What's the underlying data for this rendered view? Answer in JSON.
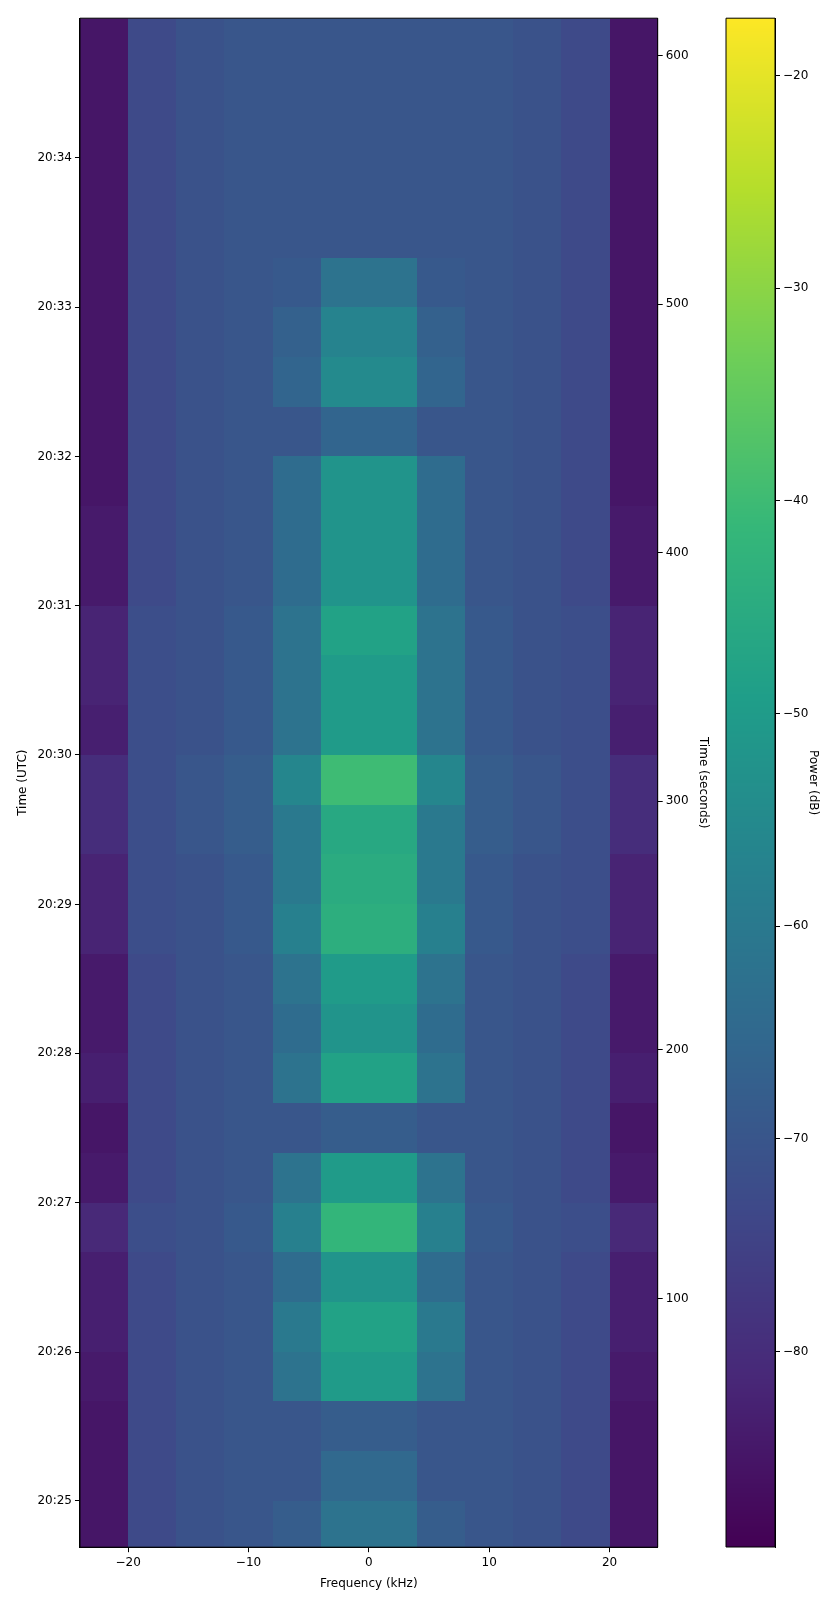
{
  "chart_data": {
    "type": "heatmap",
    "xlabel": "Frequency (kHz)",
    "ylabel": "Time (UTC)",
    "y2label": "Time (seconds)",
    "clabel": "Power (dB)",
    "x": [
      -22,
      -18,
      -14,
      -10,
      -6,
      -2,
      2,
      6,
      10,
      14,
      18,
      22
    ],
    "y": [
      20.58056,
      20.575,
      20.56944,
      20.56389,
      20.55833,
      20.55278,
      20.54722,
      20.54167,
      20.53611,
      20.53056,
      20.525,
      20.51944,
      20.51389,
      20.50833,
      20.50278,
      20.49722,
      20.49167,
      20.48611,
      20.48056,
      20.475,
      20.46944,
      20.46389,
      20.45833,
      20.45278,
      20.44722,
      20.44167,
      20.43611,
      20.43056,
      20.425,
      20.41944,
      20.41389
    ],
    "cells": [
      [
        -85,
        -73,
        -71,
        -70,
        -70,
        -70,
        -70,
        -70,
        -70,
        -71,
        -73,
        -85
      ],
      [
        -85,
        -73,
        -71,
        -70,
        -70,
        -70,
        -70,
        -70,
        -70,
        -71,
        -73,
        -85
      ],
      [
        -85,
        -73,
        -71,
        -70,
        -70,
        -70,
        -70,
        -70,
        -70,
        -71,
        -73,
        -85
      ],
      [
        -85,
        -73,
        -71,
        -70,
        -70,
        -70,
        -70,
        -70,
        -70,
        -71,
        -73,
        -85
      ],
      [
        -85,
        -73,
        -71,
        -70,
        -70,
        -70,
        -70,
        -70,
        -70,
        -71,
        -73,
        -85
      ],
      [
        -85,
        -73,
        -71,
        -70,
        -69,
        -62,
        -62,
        -69,
        -70,
        -71,
        -73,
        -85
      ],
      [
        -85,
        -73,
        -71,
        -70,
        -67,
        -57,
        -57,
        -67,
        -70,
        -71,
        -73,
        -85
      ],
      [
        -85,
        -73,
        -71,
        -70,
        -66,
        -55,
        -55,
        -66,
        -70,
        -71,
        -73,
        -85
      ],
      [
        -85,
        -73,
        -71,
        -70,
        -70,
        -66,
        -66,
        -70,
        -70,
        -71,
        -73,
        -85
      ],
      [
        -85,
        -73,
        -71,
        -70,
        -64,
        -52,
        -52,
        -64,
        -70,
        -71,
        -73,
        -85
      ],
      [
        -84,
        -73,
        -71,
        -70,
        -64,
        -52,
        -52,
        -64,
        -70,
        -71,
        -73,
        -84
      ],
      [
        -84,
        -73,
        -71,
        -70,
        -64,
        -52,
        -52,
        -64,
        -70,
        -71,
        -73,
        -84
      ],
      [
        -82,
        -72,
        -71,
        -69,
        -62,
        -48,
        -48,
        -62,
        -69,
        -71,
        -72,
        -82
      ],
      [
        -82,
        -72,
        -71,
        -69,
        -62,
        -50,
        -50,
        -62,
        -69,
        -71,
        -72,
        -82
      ],
      [
        -83,
        -72,
        -71,
        -69,
        -62,
        -50,
        -50,
        -62,
        -69,
        -71,
        -72,
        -83
      ],
      [
        -80,
        -72,
        -70,
        -68,
        -56,
        -40,
        -40,
        -56,
        -68,
        -70,
        -72,
        -80
      ],
      [
        -80,
        -72,
        -70,
        -68,
        -60,
        -46,
        -46,
        -60,
        -68,
        -70,
        -72,
        -80
      ],
      [
        -82,
        -72,
        -71,
        -69,
        -60,
        -45,
        -45,
        -60,
        -69,
        -71,
        -72,
        -82
      ],
      [
        -82,
        -72,
        -71,
        -69,
        -58,
        -44,
        -44,
        -58,
        -69,
        -71,
        -72,
        -82
      ],
      [
        -84,
        -73,
        -71,
        -70,
        -62,
        -50,
        -50,
        -62,
        -70,
        -71,
        -73,
        -84
      ],
      [
        -84,
        -73,
        -71,
        -70,
        -64,
        -52,
        -52,
        -64,
        -70,
        -71,
        -73,
        -84
      ],
      [
        -83,
        -73,
        -71,
        -70,
        -62,
        -48,
        -48,
        -62,
        -70,
        -71,
        -73,
        -83
      ],
      [
        -85,
        -73,
        -71,
        -70,
        -70,
        -68,
        -68,
        -70,
        -70,
        -71,
        -73,
        -85
      ],
      [
        -84,
        -73,
        -71,
        -70,
        -62,
        -50,
        -50,
        -62,
        -70,
        -71,
        -73,
        -84
      ],
      [
        -81,
        -72,
        -71,
        -69,
        -58,
        -42,
        -42,
        -58,
        -69,
        -71,
        -72,
        -81
      ],
      [
        -83,
        -73,
        -71,
        -70,
        -64,
        -52,
        -52,
        -64,
        -70,
        -71,
        -73,
        -83
      ],
      [
        -83,
        -73,
        -71,
        -70,
        -60,
        -48,
        -48,
        -60,
        -70,
        -71,
        -73,
        -83
      ],
      [
        -84,
        -73,
        -71,
        -70,
        -62,
        -50,
        -50,
        -62,
        -70,
        -71,
        -73,
        -84
      ],
      [
        -85,
        -73,
        -71,
        -70,
        -70,
        -68,
        -68,
        -70,
        -70,
        -71,
        -73,
        -85
      ],
      [
        -85,
        -73,
        -71,
        -70,
        -70,
        -65,
        -65,
        -70,
        -70,
        -71,
        -73,
        -85
      ],
      [
        -85,
        -73,
        -71,
        -70,
        -68,
        -62,
        -62,
        -68,
        -70,
        -71,
        -73,
        -85
      ]
    ],
    "xlim": [
      -24,
      24
    ],
    "xticks": [
      -20,
      -10,
      0,
      10,
      20
    ],
    "ylim": [
      20.4115,
      20.5823
    ],
    "yticks": [
      {
        "value": 20.4167,
        "label": "20:25"
      },
      {
        "value": 20.4333,
        "label": "20:26"
      },
      {
        "value": 20.45,
        "label": "20:27"
      },
      {
        "value": 20.4667,
        "label": "20:28"
      },
      {
        "value": 20.4833,
        "label": "20:29"
      },
      {
        "value": 20.5,
        "label": "20:30"
      },
      {
        "value": 20.5167,
        "label": "20:31"
      },
      {
        "value": 20.5333,
        "label": "20:32"
      },
      {
        "value": 20.55,
        "label": "20:33"
      },
      {
        "value": 20.5667,
        "label": "20:34"
      }
    ],
    "y2lim": [
      0,
      615
    ],
    "y2ticks": [
      100,
      200,
      300,
      400,
      500,
      600
    ],
    "clim": [
      -89.2,
      -17.3
    ],
    "cticks": [
      -80,
      -70,
      -60,
      -50,
      -40,
      -30,
      -20
    ]
  }
}
